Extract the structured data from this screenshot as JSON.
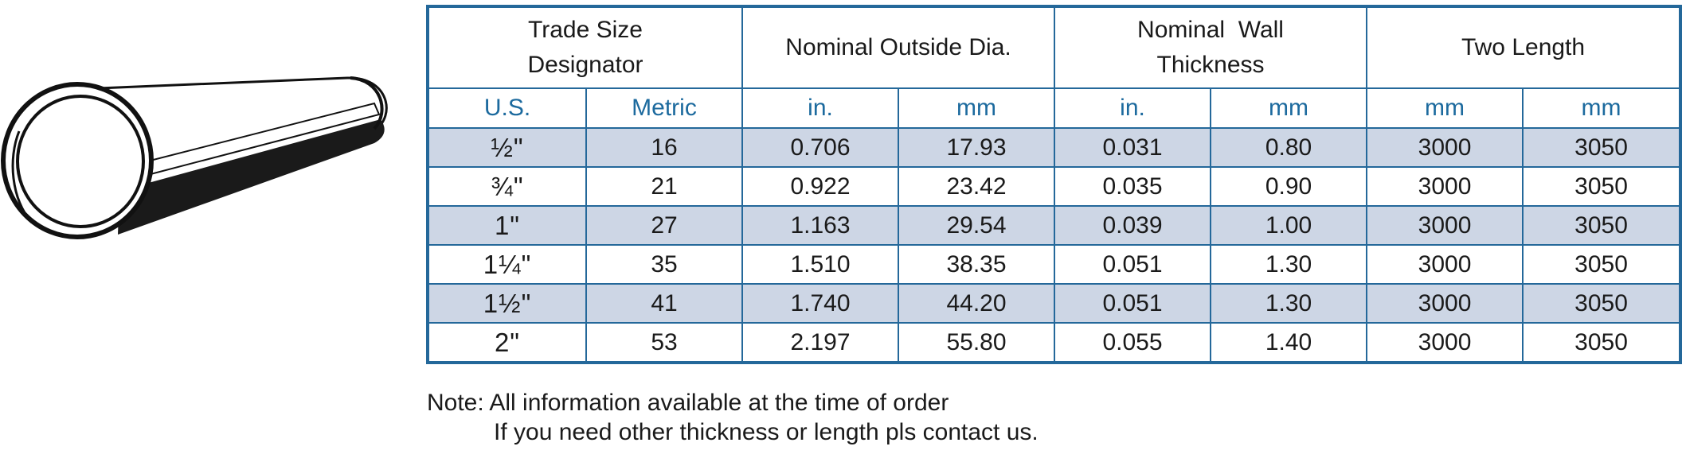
{
  "illustration": {
    "icon": "pipe-icon"
  },
  "table": {
    "headers": {
      "trade_size": "Trade Size Designator",
      "outside_dia": "Nominal Outside Dia.",
      "wall_thickness": "Nominal  Wall Thickness",
      "two_length": "Two Length"
    },
    "units": [
      "U.S.",
      "Metric",
      "in.",
      "mm",
      "in.",
      "mm",
      "mm",
      "mm"
    ],
    "rows": [
      [
        "½\"",
        "16",
        "0.706",
        "17.93",
        "0.031",
        "0.80",
        "3000",
        "3050"
      ],
      [
        "¾\"",
        "21",
        "0.922",
        "23.42",
        "0.035",
        "0.90",
        "3000",
        "3050"
      ],
      [
        "1\"",
        "27",
        "1.163",
        "29.54",
        "0.039",
        "1.00",
        "3000",
        "3050"
      ],
      [
        "1¼\"",
        "35",
        "1.510",
        "38.35",
        "0.051",
        "1.30",
        "3000",
        "3050"
      ],
      [
        "1½\"",
        "41",
        "1.740",
        "44.20",
        "0.051",
        "1.30",
        "3000",
        "3050"
      ],
      [
        "2\"",
        "53",
        "2.197",
        "55.80",
        "0.055",
        "1.40",
        "3000",
        "3050"
      ]
    ]
  },
  "note": {
    "line1": "Note: All information available at the time of order",
    "line2": "If you need other thickness or length pls contact us."
  },
  "colors": {
    "border": "#24689a",
    "unit_text": "#1c6a9e",
    "shaded_row": "#cdd6e5"
  }
}
